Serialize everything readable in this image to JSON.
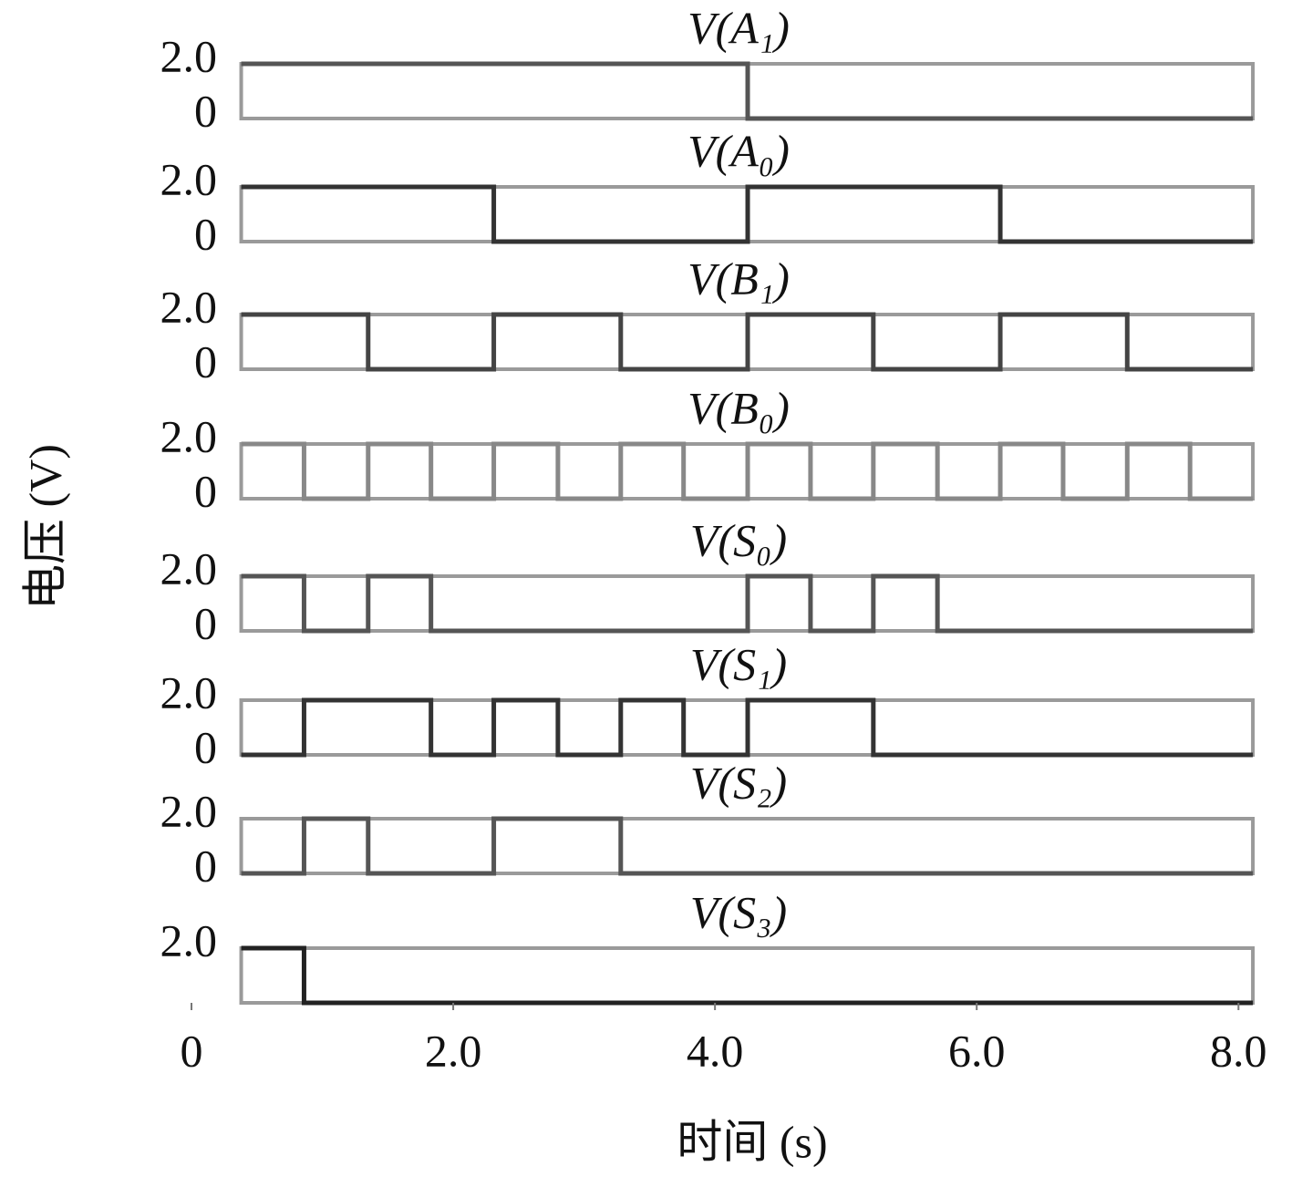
{
  "chart_data": {
    "type": "line",
    "y_label": "电压 (V)",
    "x_label": "时间 (s)",
    "xlim": [
      0,
      8.2
    ],
    "xticks": [
      0,
      {
        "value": 2,
        "label": "2.0"
      },
      {
        "value": 4,
        "label": "4.0"
      },
      {
        "value": 6,
        "label": "6.0"
      },
      {
        "value": 8,
        "label": "8.0"
      }
    ],
    "panels": [
      {
        "title": "V(A₁)",
        "color": "#555555",
        "ylim": [
          0,
          2
        ],
        "yticks": [
          {
            "value": 2,
            "label": "2.0"
          },
          0
        ],
        "x": [
          0.38,
          4.25,
          4.25,
          8.11
        ],
        "values": [
          2,
          2,
          0,
          0
        ]
      },
      {
        "title": "V(A₀)",
        "color": "#333333",
        "ylim": [
          0,
          2
        ],
        "yticks": [
          {
            "value": 2,
            "label": "2.0"
          },
          0
        ],
        "x": [
          0.38,
          2.31,
          2.31,
          4.25,
          4.25,
          6.18,
          6.18,
          8.11
        ],
        "values": [
          2,
          2,
          0,
          0,
          2,
          2,
          0,
          0
        ]
      },
      {
        "title": "V(B₁)",
        "color": "#444444",
        "ylim": [
          0,
          2
        ],
        "yticks": [
          {
            "value": 2,
            "label": "2.0"
          },
          0
        ],
        "x": [
          0.38,
          1.35,
          1.35,
          2.31,
          2.31,
          3.28,
          3.28,
          4.25,
          4.25,
          5.21,
          5.21,
          6.18,
          6.18,
          7.15,
          7.15,
          8.11
        ],
        "values": [
          2,
          2,
          0,
          0,
          2,
          2,
          0,
          0,
          2,
          2,
          0,
          0,
          2,
          2,
          0,
          0
        ]
      },
      {
        "title": "V(B₀)",
        "color": "#888888",
        "ylim": [
          0,
          2
        ],
        "yticks": [
          {
            "value": 2,
            "label": "2.0"
          },
          0
        ],
        "x": [
          0.38,
          0.86,
          0.86,
          1.35,
          1.35,
          1.83,
          1.83,
          2.31,
          2.31,
          2.8,
          2.8,
          3.28,
          3.28,
          3.76,
          3.76,
          4.25,
          4.25,
          4.73,
          4.73,
          5.21,
          5.21,
          5.7,
          5.7,
          6.18,
          6.18,
          6.66,
          6.66,
          7.15,
          7.15,
          7.63,
          7.63,
          8.11
        ],
        "values": [
          2,
          2,
          0,
          0,
          2,
          2,
          0,
          0,
          2,
          2,
          0,
          0,
          2,
          2,
          0,
          0,
          2,
          2,
          0,
          0,
          2,
          2,
          0,
          0,
          2,
          2,
          0,
          0,
          2,
          2,
          0,
          0
        ]
      },
      {
        "title": "V(S₀)",
        "color": "#555555",
        "ylim": [
          0,
          2
        ],
        "yticks": [
          {
            "value": 2,
            "label": "2.0"
          },
          0
        ],
        "x": [
          0.38,
          0.86,
          0.86,
          1.35,
          1.35,
          1.83,
          1.83,
          4.25,
          4.25,
          4.73,
          4.73,
          5.21,
          5.21,
          5.7,
          5.7,
          8.11
        ],
        "values": [
          2,
          2,
          0,
          0,
          2,
          2,
          0,
          0,
          2,
          2,
          0,
          0,
          2,
          2,
          0,
          0
        ]
      },
      {
        "title": "V(S₁)",
        "color": "#333333",
        "ylim": [
          0,
          2
        ],
        "yticks": [
          {
            "value": 2,
            "label": "2.0"
          },
          0
        ],
        "x": [
          0.38,
          0.86,
          0.86,
          1.83,
          1.83,
          2.31,
          2.31,
          2.8,
          2.8,
          3.28,
          3.28,
          3.76,
          3.76,
          4.25,
          4.25,
          5.21,
          5.21,
          8.11
        ],
        "values": [
          0,
          0,
          2,
          2,
          0,
          0,
          2,
          2,
          0,
          0,
          2,
          2,
          0,
          0,
          2,
          2,
          0,
          0
        ]
      },
      {
        "title": "V(S₂)",
        "color": "#555555",
        "ylim": [
          0,
          2
        ],
        "yticks": [
          {
            "value": 2,
            "label": "2.0"
          },
          0
        ],
        "x": [
          0.38,
          0.86,
          0.86,
          1.35,
          1.35,
          2.31,
          2.31,
          3.28,
          3.28,
          8.11
        ],
        "values": [
          0,
          0,
          2,
          2,
          0,
          0,
          2,
          2,
          0,
          0
        ]
      },
      {
        "title": "V(S₃)",
        "color": "#222222",
        "ylim": [
          0,
          2
        ],
        "yticks": [
          {
            "value": 2,
            "label": "2.0"
          }
        ],
        "x": [
          0.38,
          0.86,
          0.86,
          8.11
        ],
        "values": [
          2,
          2,
          0,
          0
        ]
      }
    ]
  }
}
